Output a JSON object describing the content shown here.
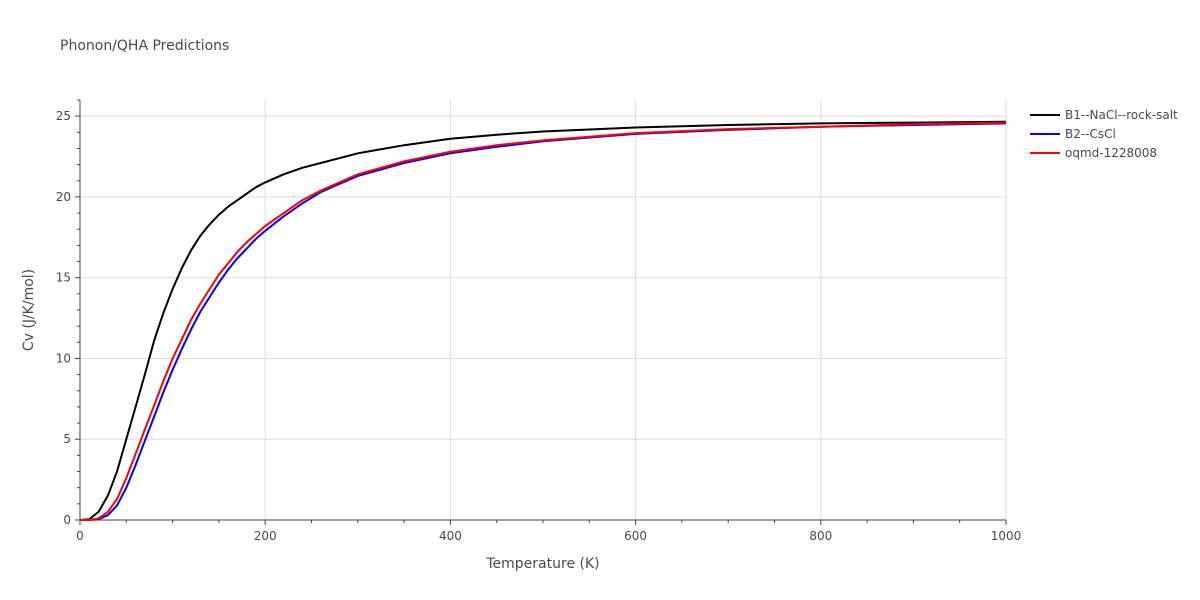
{
  "chart_data": {
    "type": "line",
    "title": "Phonon/QHA Predictions",
    "xlabel": "Temperature (K)",
    "ylabel": "Cv (J/K/mol)",
    "xlim": [
      0,
      1000
    ],
    "ylim": [
      0,
      26
    ],
    "xticks": [
      0,
      200,
      400,
      600,
      800,
      1000
    ],
    "yticks": [
      0,
      5,
      10,
      15,
      20,
      25
    ],
    "grid": true,
    "legend_position": "top-right",
    "series": [
      {
        "name": "B1--NaCl--rock-salt",
        "color": "#000000",
        "x": [
          0,
          10,
          20,
          30,
          40,
          50,
          60,
          70,
          80,
          90,
          100,
          110,
          120,
          130,
          140,
          150,
          160,
          170,
          180,
          190,
          200,
          220,
          240,
          260,
          280,
          300,
          350,
          400,
          450,
          500,
          600,
          700,
          800,
          900,
          1000
        ],
        "y": [
          0,
          0.05,
          0.5,
          1.5,
          3.0,
          5.0,
          7.0,
          9.0,
          11.1,
          12.8,
          14.3,
          15.6,
          16.7,
          17.6,
          18.3,
          18.9,
          19.4,
          19.8,
          20.2,
          20.6,
          20.9,
          21.4,
          21.8,
          22.1,
          22.4,
          22.7,
          23.2,
          23.6,
          23.85,
          24.05,
          24.3,
          24.45,
          24.55,
          24.6,
          24.65
        ]
      },
      {
        "name": "B2--CsCl",
        "color": "#0000ff",
        "x": [
          0,
          10,
          20,
          30,
          40,
          50,
          60,
          70,
          80,
          90,
          100,
          110,
          120,
          130,
          140,
          150,
          160,
          170,
          180,
          190,
          200,
          220,
          240,
          260,
          280,
          300,
          350,
          400,
          450,
          500,
          600,
          700,
          800,
          900,
          1000
        ],
        "y": [
          0,
          0,
          0.05,
          0.3,
          0.9,
          2.0,
          3.4,
          4.9,
          6.4,
          7.9,
          9.3,
          10.6,
          11.8,
          12.9,
          13.8,
          14.7,
          15.5,
          16.2,
          16.8,
          17.4,
          17.9,
          18.8,
          19.6,
          20.3,
          20.8,
          21.3,
          22.1,
          22.7,
          23.1,
          23.45,
          23.9,
          24.15,
          24.35,
          24.45,
          24.55
        ]
      },
      {
        "name": "oqmd-1228008",
        "color": "#ff0000",
        "x": [
          0,
          10,
          20,
          30,
          40,
          50,
          60,
          70,
          80,
          90,
          100,
          110,
          120,
          130,
          140,
          150,
          160,
          170,
          180,
          190,
          200,
          220,
          240,
          260,
          280,
          300,
          350,
          400,
          450,
          500,
          600,
          700,
          800,
          900,
          1000
        ],
        "y": [
          0,
          0,
          0.1,
          0.5,
          1.3,
          2.6,
          4.1,
          5.6,
          7.1,
          8.6,
          10.0,
          11.2,
          12.4,
          13.4,
          14.3,
          15.2,
          15.9,
          16.6,
          17.2,
          17.7,
          18.2,
          19.0,
          19.8,
          20.4,
          20.9,
          21.4,
          22.2,
          22.8,
          23.2,
          23.5,
          23.95,
          24.2,
          24.35,
          24.5,
          24.6
        ]
      }
    ]
  }
}
